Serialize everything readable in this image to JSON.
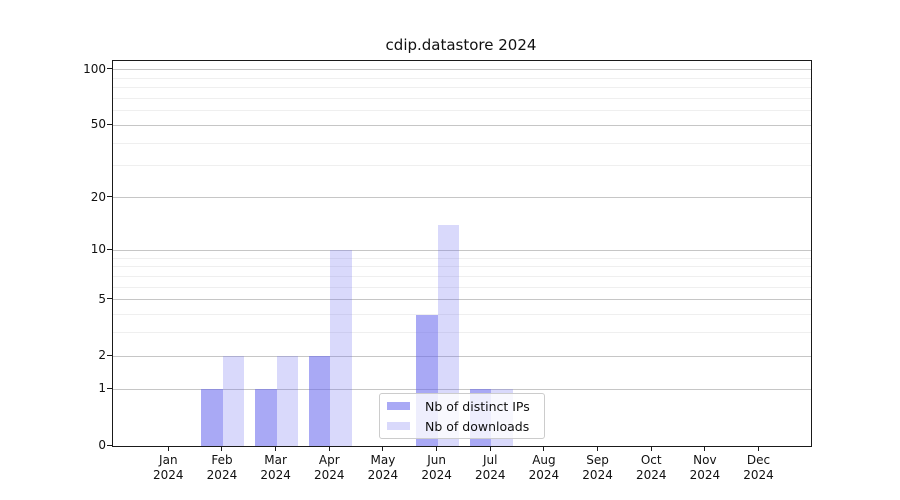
{
  "chart_data": {
    "type": "bar",
    "title": "cdip.datastore 2024",
    "x_tick_labels": [
      [
        "Jan",
        "2024"
      ],
      [
        "Feb",
        "2024"
      ],
      [
        "Mar",
        "2024"
      ],
      [
        "Apr",
        "2024"
      ],
      [
        "May",
        "2024"
      ],
      [
        "Jun",
        "2024"
      ],
      [
        "Jul",
        "2024"
      ],
      [
        "Aug",
        "2024"
      ],
      [
        "Sep",
        "2024"
      ],
      [
        "Oct",
        "2024"
      ],
      [
        "Nov",
        "2024"
      ],
      [
        "Dec",
        "2024"
      ]
    ],
    "categories": [
      "Jan 2024",
      "Feb 2024",
      "Mar 2024",
      "Apr 2024",
      "May 2024",
      "Jun 2024",
      "Jul 2024",
      "Aug 2024",
      "Sep 2024",
      "Oct 2024",
      "Nov 2024",
      "Dec 2024"
    ],
    "series": [
      {
        "name": "Nb of distinct IPs",
        "color": "#6666ee",
        "alpha": 0.56,
        "values": [
          0,
          1,
          1,
          2,
          0,
          4,
          1,
          0,
          0,
          0,
          0,
          0
        ]
      },
      {
        "name": "Nb of downloads",
        "color": "#6666ee",
        "alpha": 0.25,
        "values": [
          0,
          2,
          2,
          10,
          0,
          14,
          1,
          0,
          0,
          0,
          0,
          0
        ]
      }
    ],
    "y_axis": {
      "scale": "log1p",
      "ticks": [
        0,
        1,
        2,
        5,
        10,
        20,
        50,
        100
      ],
      "minor_ticks": [
        3,
        4,
        6,
        7,
        8,
        9,
        30,
        40,
        60,
        70,
        80,
        90
      ],
      "max_value": 111
    },
    "xlabel": "",
    "ylabel": "",
    "grid": true,
    "legend_position": "lower center-right"
  }
}
